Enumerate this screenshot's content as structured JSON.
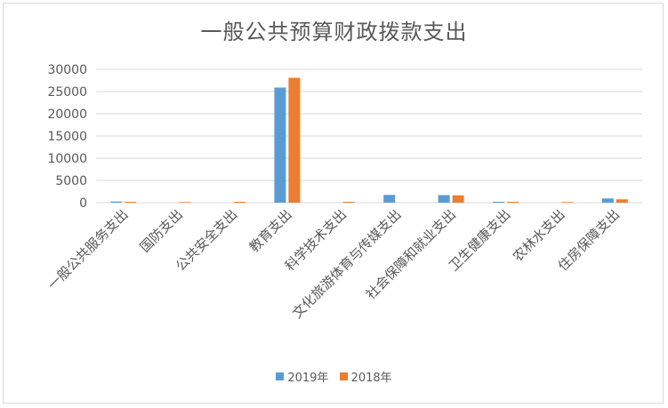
{
  "chart_data": {
    "type": "bar",
    "title": "一般公共预算财政拨款支出",
    "categories": [
      "一般公共服务支出",
      "国防支出",
      "公共安全支出",
      "教育支出",
      "科学技术支出",
      "文化旅游体育与传媒支出",
      "社会保障和就业支出",
      "卫生健康支出",
      "农林水支出",
      "住房保障支出"
    ],
    "series": [
      {
        "name": "2019年",
        "color": "#5b9bd5",
        "values": [
          250,
          0,
          0,
          25900,
          0,
          1750,
          1700,
          200,
          0,
          950
        ]
      },
      {
        "name": "2018年",
        "color": "#ed7d31",
        "values": [
          200,
          150,
          200,
          28100,
          200,
          0,
          1650,
          200,
          150,
          750
        ]
      }
    ],
    "ylim": [
      0,
      30000
    ],
    "yticks": [
      "0",
      "5000",
      "10000",
      "15000",
      "20000",
      "25000",
      "30000"
    ],
    "grid": true,
    "legend": "bottom"
  }
}
